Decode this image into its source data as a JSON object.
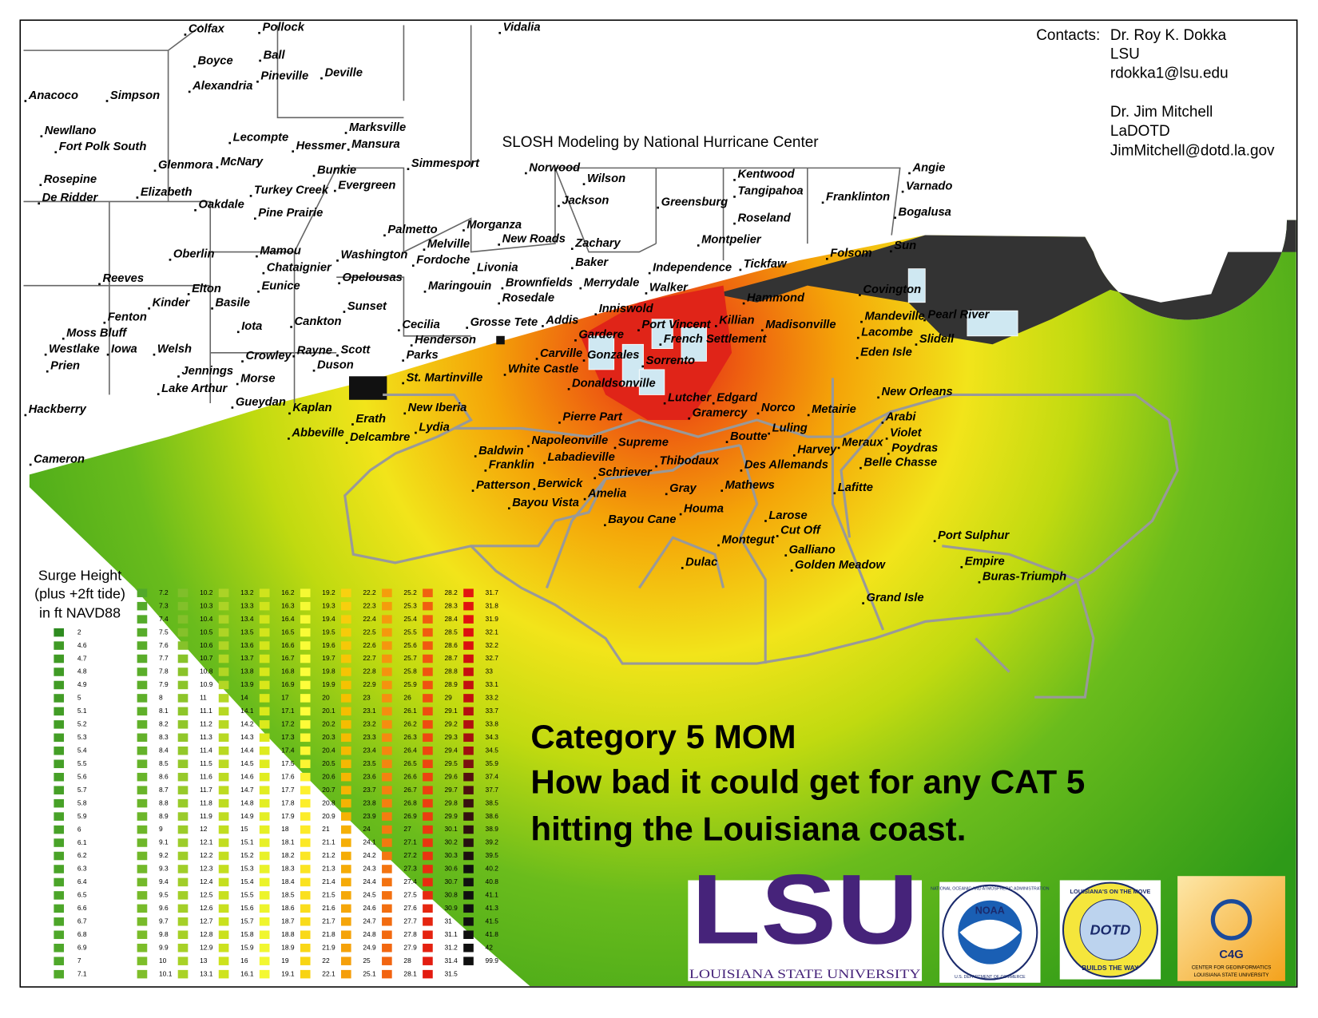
{
  "header": {
    "slosh": "SLOSH Modeling by National Hurricane Center",
    "contacts": {
      "label": "Contacts:",
      "lines": [
        "Dr. Roy K. Dokka",
        "LSU",
        "rdokka1@lsu.edu",
        "Dr. Jim Mitchell",
        "LaDOTD",
        "JimMitchell@dotd.la.gov"
      ]
    }
  },
  "title": [
    "Category 5 MOM",
    "How bad it could get for any CAT 5",
    "hitting the Louisiana coast."
  ],
  "legend": {
    "title": [
      "Surge Height",
      "(plus +2ft tide)",
      "in ft NAVD88"
    ],
    "columns": [
      [
        2,
        4.6,
        4.7,
        4.8,
        4.9,
        5,
        5.1,
        5.2,
        5.3,
        5.4,
        5.5,
        5.6,
        5.7,
        5.8,
        5.9,
        6,
        6.1,
        6.2,
        6.3,
        6.4,
        6.5,
        6.6,
        6.7,
        6.8,
        6.9,
        7,
        7.1
      ],
      [
        7.2,
        7.3,
        7.4,
        7.5,
        7.6,
        7.7,
        7.8,
        7.9,
        8,
        8.1,
        8.2,
        8.3,
        8.4,
        8.5,
        8.6,
        8.7,
        8.8,
        8.9,
        9,
        9.1,
        9.2,
        9.3,
        9.4,
        9.5,
        9.6,
        9.7,
        9.8,
        9.9,
        10,
        10.1
      ],
      [
        10.2,
        10.3,
        10.4,
        10.5,
        10.6,
        10.7,
        10.8,
        10.9,
        11,
        11.1,
        11.2,
        11.3,
        11.4,
        11.5,
        11.6,
        11.7,
        11.8,
        11.9,
        12,
        12.1,
        12.2,
        12.3,
        12.4,
        12.5,
        12.6,
        12.7,
        12.8,
        12.9,
        13,
        13.1
      ],
      [
        13.2,
        13.3,
        13.4,
        13.5,
        13.6,
        13.7,
        13.8,
        13.9,
        14,
        14.1,
        14.2,
        14.3,
        14.4,
        14.5,
        14.6,
        14.7,
        14.8,
        14.9,
        15,
        15.1,
        15.2,
        15.3,
        15.4,
        15.5,
        15.6,
        15.7,
        15.8,
        15.9,
        16,
        16.1
      ],
      [
        16.2,
        16.3,
        16.4,
        16.5,
        16.6,
        16.7,
        16.8,
        16.9,
        17,
        17.1,
        17.2,
        17.3,
        17.4,
        17.5,
        17.6,
        17.7,
        17.8,
        17.9,
        18,
        18.1,
        18.2,
        18.3,
        18.4,
        18.5,
        18.6,
        18.7,
        18.8,
        18.9,
        19,
        19.1
      ],
      [
        19.2,
        19.3,
        19.4,
        19.5,
        19.6,
        19.7,
        19.8,
        19.9,
        20,
        20.1,
        20.2,
        20.3,
        20.4,
        20.5,
        20.6,
        20.7,
        20.8,
        20.9,
        21,
        21.1,
        21.2,
        21.3,
        21.4,
        21.5,
        21.6,
        21.7,
        21.8,
        21.9,
        22,
        22.1
      ],
      [
        22.2,
        22.3,
        22.4,
        22.5,
        22.6,
        22.7,
        22.8,
        22.9,
        23,
        23.1,
        23.2,
        23.3,
        23.4,
        23.5,
        23.6,
        23.7,
        23.8,
        23.9,
        24,
        24.1,
        24.2,
        24.3,
        24.4,
        24.5,
        24.6,
        24.7,
        24.8,
        24.9,
        25,
        25.1
      ],
      [
        25.2,
        25.3,
        25.4,
        25.5,
        25.6,
        25.7,
        25.8,
        25.9,
        26,
        26.1,
        26.2,
        26.3,
        26.4,
        26.5,
        26.6,
        26.7,
        26.8,
        26.9,
        27,
        27.1,
        27.2,
        27.3,
        27.4,
        27.5,
        27.6,
        27.7,
        27.8,
        27.9,
        28,
        28.1
      ],
      [
        28.2,
        28.3,
        28.4,
        28.5,
        28.6,
        28.7,
        28.8,
        28.9,
        29,
        29.1,
        29.2,
        29.3,
        29.4,
        29.5,
        29.6,
        29.7,
        29.8,
        29.9,
        30.1,
        30.2,
        30.3,
        30.6,
        30.7,
        30.8,
        30.9,
        31,
        31.1,
        31.2,
        31.4,
        31.5
      ],
      [
        31.7,
        31.8,
        31.9,
        32.1,
        32.2,
        32.7,
        33,
        33.1,
        33.2,
        33.7,
        33.8,
        34.3,
        34.5,
        35.9,
        37.4,
        37.7,
        38.5,
        38.6,
        38.9,
        39.2,
        39.5,
        40.2,
        40.8,
        41.1,
        41.3,
        41.5,
        41.8,
        42,
        99.9
      ]
    ]
  },
  "places": [
    "Colfax",
    "Pollock",
    "Vidalia",
    "Boyce",
    "Ball",
    "Pineville",
    "Deville",
    "Alexandria",
    "Anacoco",
    "Simpson",
    "Newllano",
    "Fort Polk South",
    "Lecompte",
    "Marksville",
    "Hessmer",
    "Mansura",
    "Glenmora",
    "McNary",
    "Simmesport",
    "Norwood",
    "Bunkie",
    "Rosepine",
    "Wilson",
    "Kentwood",
    "Angie",
    "Turkey Creek",
    "Evergreen",
    "Varnado",
    "Elizabeth",
    "De Ridder",
    "Oakdale",
    "Jackson",
    "Greensburg",
    "Tangipahoa",
    "Franklinton",
    "Pine Prairie",
    "Bogalusa",
    "Roseland",
    "Palmetto",
    "Morganza",
    "New Roads",
    "Melville",
    "Zachary",
    "Montpelier",
    "Sun",
    "Oberlin",
    "Mamou",
    "Washington",
    "Fordoche",
    "Folsom",
    "Livonia",
    "Baker",
    "Independence",
    "Tickfaw",
    "Chataignier",
    "Opelousas",
    "Brownfields",
    "Merrydale",
    "Reeves",
    "Eunice",
    "Maringouin",
    "Walker",
    "Covington",
    "Elton",
    "Rosedale",
    "Hammond",
    "Kinder",
    "Basile",
    "Sunset",
    "Inniswold",
    "Fenton",
    "Killian",
    "Mandeville",
    "Pearl River",
    "Iota",
    "Cankton",
    "Cecilia",
    "Grosse Tete",
    "Addis",
    "Port Vincent",
    "Madisonville",
    "Moss Bluff",
    "Lacombe",
    "Gardere",
    "Henderson",
    "French Settlement",
    "Slidell",
    "Westlake",
    "Iowa",
    "Welsh",
    "Scott",
    "Rayne",
    "Parks",
    "Carville",
    "Gonzales",
    "Eden Isle",
    "Crowley",
    "Sorrento",
    "Prien",
    "Duson",
    "White Castle",
    "Jennings",
    "Morse",
    "St. Martinville",
    "Donaldsonville",
    "Lake Arthur",
    "New Orleans",
    "Lutcher",
    "Edgard",
    "Gueydan",
    "Kaplan",
    "New Iberia",
    "Norco",
    "Metairie",
    "Hackberry",
    "Gramercy",
    "Erath",
    "Pierre Part",
    "Arabi",
    "Abbeville",
    "Delcambre",
    "Lydia",
    "Boutte",
    "Luling",
    "Violet",
    "Napoleonville",
    "Supreme",
    "Harvey",
    "Meraux",
    "Poydras",
    "Baldwin",
    "Labadieville",
    "Thibodaux",
    "Cameron",
    "Franklin",
    "Des Allemands",
    "Belle Chasse",
    "Schriever",
    "Berwick",
    "Patterson",
    "Mathews",
    "Gray",
    "Lafitte",
    "Amelia",
    "Bayou Vista",
    "Houma",
    "Larose",
    "Bayou Cane",
    "Cut Off",
    "Port Sulphur",
    "Montegut",
    "Galliano",
    "Dulac",
    "Empire",
    "Golden Meadow",
    "Buras-Triumph",
    "Grand Isle"
  ],
  "logos": {
    "lsu": "LSU",
    "lsu_name": "Louisiana State University",
    "noaa": "NOAA",
    "noaa_ring": "National Oceanic and Atmospheric Administration",
    "noaa_dept": "U.S. Department of Commerce",
    "dotd": "DOTD",
    "dotd_top": "Louisiana's on the move",
    "dotd_bottom": "Builds the way",
    "c4g": "C4G",
    "c4g_name": "Center for Geoinformatics",
    "c4g_univ": "Louisiana State University"
  }
}
